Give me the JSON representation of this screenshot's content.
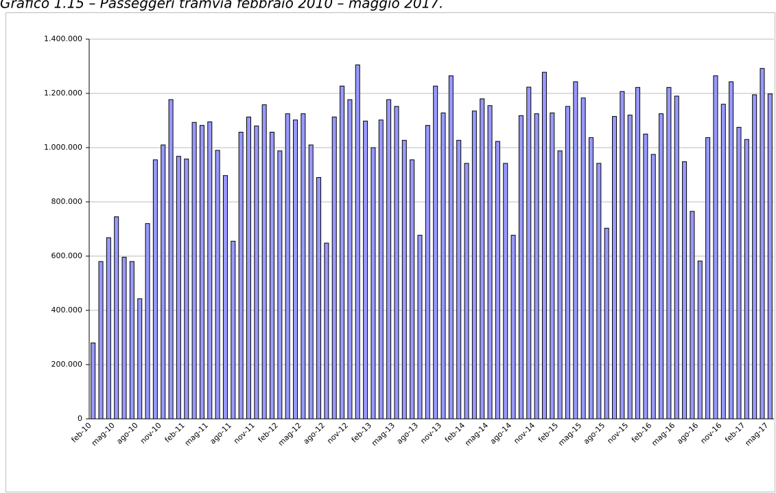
{
  "chart_data": {
    "type": "bar",
    "title": "Grafico 1.15 – Passeggeri tramvia febbraio 2010 – maggio 2017.",
    "categories": [
      "feb-10",
      null,
      null,
      "mag-10",
      null,
      null,
      "ago-10",
      null,
      null,
      "nov-10",
      null,
      null,
      "feb-11",
      null,
      null,
      "mag-11",
      null,
      null,
      "ago-11",
      null,
      null,
      "nov-11",
      null,
      null,
      "feb-12",
      null,
      null,
      "mag-12",
      null,
      null,
      "ago-12",
      null,
      null,
      "nov-12",
      null,
      null,
      "feb-13",
      null,
      null,
      "mag-13",
      null,
      null,
      "ago-13",
      null,
      null,
      "nov-13",
      null,
      null,
      "feb-14",
      null,
      null,
      "mag-14",
      null,
      null,
      "ago-14",
      null,
      null,
      "nov-14",
      null,
      null,
      "feb-15",
      null,
      null,
      "mag-15",
      null,
      null,
      "ago-15",
      null,
      null,
      "nov-15",
      null,
      null,
      "feb-16",
      null,
      null,
      "mag-16",
      null,
      null,
      "ago-16",
      null,
      null,
      "nov-16",
      null,
      null,
      "feb-17",
      null,
      null,
      "mag-17"
    ],
    "values": [
      280000,
      580000,
      668000,
      745000,
      596000,
      580000,
      443000,
      720000,
      955000,
      1010000,
      1177000,
      968000,
      958000,
      1093000,
      1082000,
      1095000,
      990000,
      897000,
      655000,
      1057000,
      1113000,
      1080000,
      1158000,
      1057000,
      988000,
      1125000,
      1102000,
      1125000,
      1010000,
      890000,
      648000,
      1113000,
      1227000,
      1177000,
      1305000,
      1098000,
      1000000,
      1102000,
      1177000,
      1152000,
      1027000,
      955000,
      677000,
      1082000,
      1227000,
      1128000,
      1265000,
      1027000,
      942000,
      1135000,
      1180000,
      1155000,
      1023000,
      942000,
      677000,
      1118000,
      1223000,
      1125000,
      1278000,
      1128000,
      988000,
      1152000,
      1243000,
      1183000,
      1037000,
      942000,
      703000,
      1115000,
      1207000,
      1120000,
      1222000,
      1050000,
      975000,
      1125000,
      1222000,
      1190000,
      948000,
      765000,
      582000,
      1037000,
      1265000,
      1160000,
      1243000,
      1075000,
      1030000,
      1195000,
      1292000,
      1198000
    ],
    "color": "#9999ff",
    "ylim": [
      0,
      1400000
    ],
    "yticks": [
      0,
      {
        "value": 200000,
        "label": "200.000"
      },
      {
        "value": 400000,
        "label": "400.000"
      },
      {
        "value": 600000,
        "label": "600.000"
      },
      {
        "value": 800000,
        "label": "800.000"
      },
      {
        "value": 1000000,
        "label": "1.000.000"
      },
      {
        "value": 1200000,
        "label": "1.200.000"
      },
      {
        "value": 1400000,
        "label": "1.400.000"
      }
    ],
    "grid": true
  }
}
